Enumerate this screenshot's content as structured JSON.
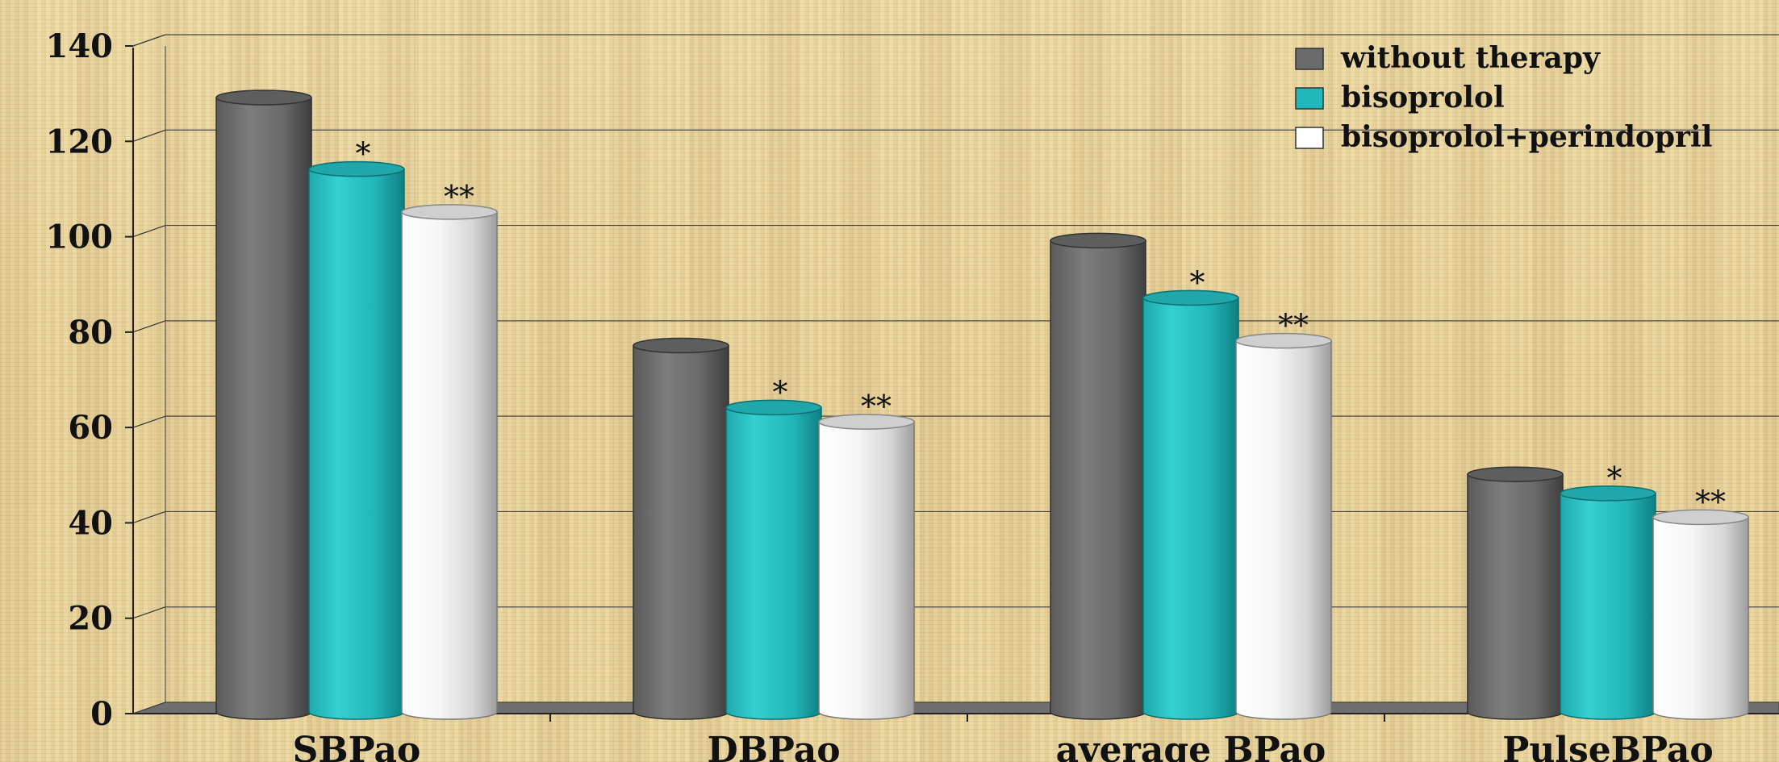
{
  "chart_data": {
    "type": "bar",
    "style": "3d-cylinder",
    "categories": [
      "SBPao",
      "DBPao",
      "average BPao",
      "PulseBPao"
    ],
    "series": [
      {
        "name": "without therapy",
        "color": "#6b6b6b",
        "values": [
          128,
          76,
          98,
          49
        ]
      },
      {
        "name": "bisoprolol",
        "color": "#22b8bb",
        "values": [
          113,
          63,
          86,
          45
        ]
      },
      {
        "name": "bisoprolol+perindopril",
        "color": "#f2f2f2",
        "values": [
          104,
          60,
          77,
          40
        ]
      }
    ],
    "annotations": [
      {
        "series": "bisoprolol",
        "label": "*"
      },
      {
        "series": "bisoprolol+perindopril",
        "label": "**"
      }
    ],
    "yticks": [
      "0",
      "20",
      "40",
      "60",
      "80",
      "100",
      "120",
      "140"
    ],
    "ylim": [
      0,
      140
    ],
    "grid": true,
    "legend": "top-right",
    "title": "",
    "xlabel": "",
    "ylabel": ""
  }
}
